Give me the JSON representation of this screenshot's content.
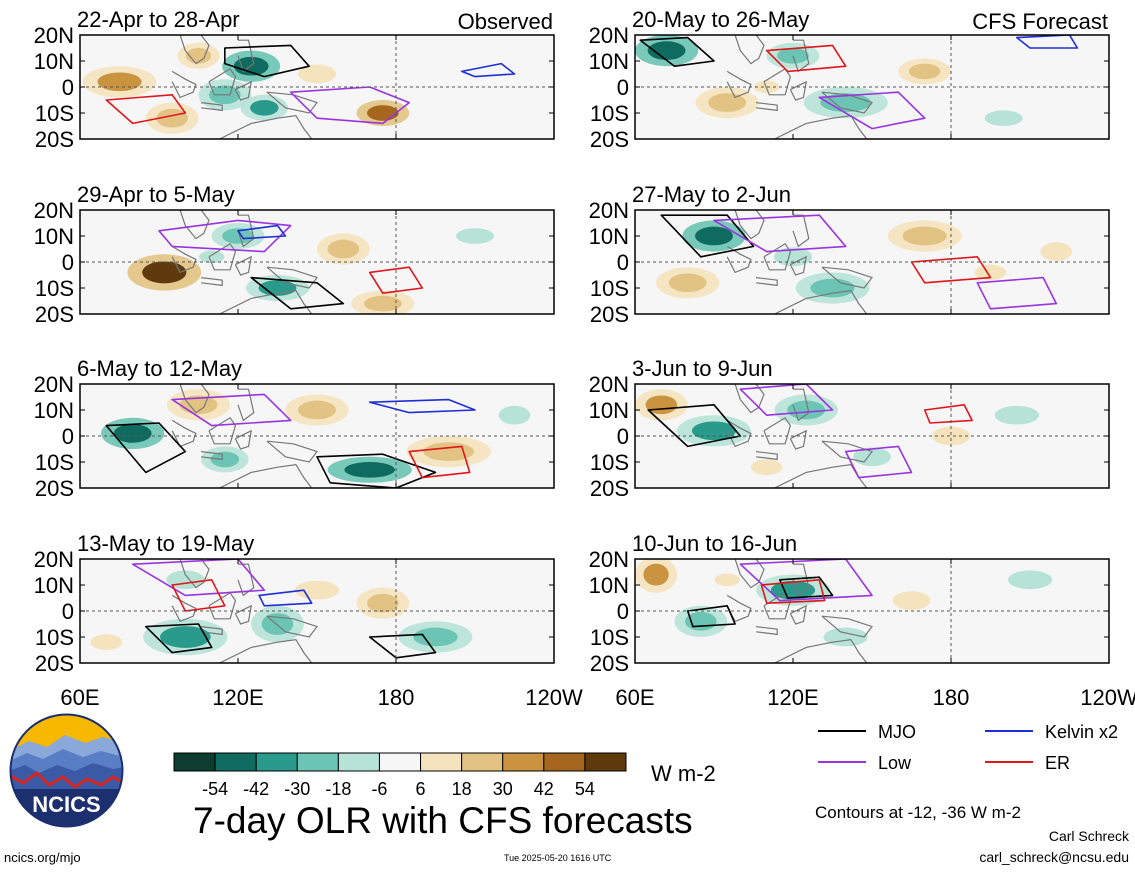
{
  "figure": {
    "title": "7-day OLR with CFS forecasts",
    "units": "W m-2",
    "contour_note": "Contours at -12, -36 W m-2",
    "author": "Carl Schreck",
    "email": "carl_schreck@ncsu.edu",
    "site": "ncics.org/mjo",
    "timestamp": "Tue 2025-05-20 1616 UTC",
    "logo_text": "NCICS",
    "observed_tag": "Observed",
    "forecast_tag": "CFS Forecast"
  },
  "chart_data": {
    "type": "heatmap",
    "variable": "7-day OLR anomaly",
    "lat_ticks": [
      "20N",
      "10N",
      "0",
      "10S",
      "20S"
    ],
    "lon_ticks": [
      "60E",
      "120E",
      "180",
      "120W"
    ],
    "lat_range": [
      -20,
      20
    ],
    "lon_range": [
      60,
      240
    ],
    "colorbar": {
      "ticks": [
        "-54",
        "-42",
        "-30",
        "-18",
        "-6",
        "6",
        "18",
        "30",
        "42",
        "54"
      ],
      "colors": [
        "#0d3d30",
        "#0f6b60",
        "#2a9a8c",
        "#6cc4b4",
        "#b7e3d7",
        "#f6f6f6",
        "#f5e3bd",
        "#e2c383",
        "#c9933f",
        "#a5671d",
        "#5e3a0c"
      ]
    },
    "legend": [
      {
        "name": "MJO",
        "color": "#000000"
      },
      {
        "name": "Kelvin x2",
        "color": "#1f2fd6"
      },
      {
        "name": "Low",
        "color": "#9a34e0"
      },
      {
        "name": "ER",
        "color": "#e0161b"
      }
    ],
    "panels": [
      {
        "title": "22-Apr to 28-Apr",
        "tag": "observed_tag",
        "col": 0,
        "row": 0,
        "blobs": [
          [
            125,
            8,
            11,
            6,
            -50
          ],
          [
            130,
            -8,
            9,
            5,
            -40
          ],
          [
            115,
            -3,
            10,
            6,
            -20
          ],
          [
            75,
            2,
            14,
            6,
            34
          ],
          [
            175,
            -10,
            10,
            5,
            44
          ],
          [
            95,
            -12,
            10,
            6,
            22
          ],
          [
            150,
            5,
            12,
            6,
            12
          ],
          [
            105,
            12,
            8,
            5,
            18
          ]
        ],
        "contours": [
          {
            "type": "MJO",
            "lon": [
              115,
              140,
              147,
              130,
              115
            ],
            "lat": [
              15,
              16,
              8,
              4,
              9
            ]
          },
          {
            "type": "Low",
            "lon": [
              140,
              170,
              185,
              175,
              150,
              140
            ],
            "lat": [
              -2,
              0,
              -6,
              -14,
              -12,
              -2
            ]
          },
          {
            "type": "Kelvin",
            "lon": [
              205,
              220,
              225,
              210,
              205
            ],
            "lat": [
              6,
              9,
              5,
              4,
              6
            ]
          },
          {
            "type": "ER",
            "lon": [
              70,
              95,
              100,
              80,
              70
            ],
            "lat": [
              -5,
              -3,
              -10,
              -14,
              -5
            ]
          }
        ]
      },
      {
        "title": "29-Apr to 5-May",
        "tag": "",
        "col": 0,
        "row": 1,
        "blobs": [
          [
            92,
            -4,
            14,
            7,
            54
          ],
          [
            135,
            -10,
            12,
            5,
            -40
          ],
          [
            120,
            10,
            10,
            5,
            -22
          ],
          [
            175,
            -16,
            12,
            5,
            28
          ],
          [
            160,
            5,
            10,
            6,
            20
          ],
          [
            210,
            10,
            12,
            5,
            -14
          ],
          [
            110,
            2,
            8,
            4,
            -14
          ]
        ],
        "contours": [
          {
            "type": "MJO",
            "lon": [
              125,
              150,
              160,
              140,
              125
            ],
            "lat": [
              -6,
              -8,
              -16,
              -18,
              -6
            ]
          },
          {
            "type": "Low",
            "lon": [
              90,
              120,
              140,
              130,
              95,
              90
            ],
            "lat": [
              12,
              16,
              14,
              4,
              6,
              12
            ]
          },
          {
            "type": "ER",
            "lon": [
              170,
              185,
              190,
              175,
              170
            ],
            "lat": [
              -4,
              -2,
              -10,
              -12,
              -4
            ]
          },
          {
            "type": "Kelvin",
            "lon": [
              120,
              135,
              138,
              122,
              120
            ],
            "lat": [
              12,
              14,
              10,
              9,
              12
            ]
          }
        ]
      },
      {
        "title": "6-May to 12-May",
        "tag": "",
        "col": 0,
        "row": 2,
        "blobs": [
          [
            80,
            1,
            12,
            6,
            -46
          ],
          [
            170,
            -13,
            16,
            5,
            -52
          ],
          [
            115,
            -9,
            9,
            5,
            -28
          ],
          [
            105,
            12,
            12,
            6,
            22
          ],
          [
            150,
            10,
            12,
            6,
            20
          ],
          [
            200,
            -6,
            16,
            6,
            18
          ],
          [
            225,
            8,
            10,
            6,
            -14
          ]
        ],
        "contours": [
          {
            "type": "MJO",
            "lon": [
              150,
              175,
              195,
              180,
              155,
              150
            ],
            "lat": [
              -8,
              -7,
              -14,
              -20,
              -18,
              -8
            ]
          },
          {
            "type": "MJO",
            "lon": [
              70,
              90,
              100,
              85,
              70
            ],
            "lat": [
              4,
              5,
              -6,
              -14,
              4
            ]
          },
          {
            "type": "Kelvin",
            "lon": [
              170,
              200,
              210,
              185,
              170
            ],
            "lat": [
              13,
              14,
              10,
              9,
              13
            ]
          },
          {
            "type": "Low",
            "lon": [
              95,
              130,
              140,
              110,
              95
            ],
            "lat": [
              14,
              16,
              6,
              4,
              14
            ]
          },
          {
            "type": "ER",
            "lon": [
              185,
              205,
              208,
              190,
              185
            ],
            "lat": [
              -6,
              -4,
              -14,
              -16,
              -6
            ]
          }
        ]
      },
      {
        "title": "13-May to 19-May",
        "tag": "",
        "col": 0,
        "row": 3,
        "blobs": [
          [
            100,
            -10,
            16,
            7,
            -34
          ],
          [
            135,
            -5,
            10,
            7,
            -20
          ],
          [
            100,
            12,
            12,
            6,
            -14
          ],
          [
            150,
            8,
            14,
            6,
            16
          ],
          [
            195,
            -10,
            14,
            6,
            -20
          ],
          [
            175,
            3,
            10,
            6,
            18
          ],
          [
            70,
            -12,
            10,
            5,
            12
          ]
        ],
        "contours": [
          {
            "type": "MJO",
            "lon": [
              85,
              105,
              110,
              95,
              85
            ],
            "lat": [
              -6,
              -5,
              -14,
              -16,
              -6
            ]
          },
          {
            "type": "MJO",
            "lon": [
              170,
              190,
              195,
              180,
              170
            ],
            "lat": [
              -10,
              -9,
              -16,
              -18,
              -10
            ]
          },
          {
            "type": "Low",
            "lon": [
              80,
              120,
              130,
              100,
              80
            ],
            "lat": [
              18,
              20,
              8,
              6,
              18
            ]
          },
          {
            "type": "Kelvin",
            "lon": [
              128,
              145,
              148,
              130,
              128
            ],
            "lat": [
              6,
              8,
              3,
              2,
              6
            ]
          },
          {
            "type": "ER",
            "lon": [
              95,
              110,
              115,
              100,
              95
            ],
            "lat": [
              10,
              12,
              2,
              0,
              10
            ]
          }
        ]
      },
      {
        "title": "20-May to 26-May",
        "tag": "forecast_tag",
        "col": 1,
        "row": 0,
        "blobs": [
          [
            72,
            14,
            12,
            6,
            -54
          ],
          [
            120,
            12,
            10,
            5,
            -24
          ],
          [
            140,
            -6,
            16,
            6,
            -22
          ],
          [
            95,
            -6,
            12,
            6,
            22
          ],
          [
            170,
            6,
            10,
            5,
            28
          ],
          [
            200,
            -12,
            12,
            5,
            -14
          ],
          [
            110,
            0,
            8,
            4,
            14
          ]
        ],
        "contours": [
          {
            "type": "MJO",
            "lon": [
              62,
              80,
              90,
              75,
              62
            ],
            "lat": [
              18,
              19,
              10,
              8,
              18
            ]
          },
          {
            "type": "Low",
            "lon": [
              130,
              160,
              170,
              150,
              130
            ],
            "lat": [
              -4,
              -2,
              -12,
              -16,
              -4
            ]
          },
          {
            "type": "Kelvin",
            "lon": [
              205,
              225,
              228,
              210,
              205
            ],
            "lat": [
              19,
              20,
              15,
              15,
              19
            ]
          },
          {
            "type": "ER",
            "lon": [
              110,
              135,
              140,
              118,
              110
            ],
            "lat": [
              14,
              16,
              8,
              6,
              14
            ]
          }
        ]
      },
      {
        "title": "27-May to 2-Jun",
        "tag": "",
        "col": 1,
        "row": 1,
        "blobs": [
          [
            90,
            10,
            12,
            6,
            -54
          ],
          [
            135,
            -10,
            14,
            6,
            -24
          ],
          [
            120,
            2,
            12,
            6,
            -14
          ],
          [
            80,
            -8,
            12,
            6,
            22
          ],
          [
            170,
            10,
            14,
            6,
            18
          ],
          [
            195,
            -4,
            10,
            5,
            16
          ],
          [
            220,
            4,
            10,
            6,
            12
          ]
        ],
        "contours": [
          {
            "type": "MJO",
            "lon": [
              70,
              95,
              105,
              85,
              70
            ],
            "lat": [
              18,
              18,
              6,
              2,
              18
            ]
          },
          {
            "type": "Low",
            "lon": [
              90,
              130,
              140,
              110,
              90
            ],
            "lat": [
              16,
              18,
              6,
              4,
              16
            ]
          },
          {
            "type": "ER",
            "lon": [
              165,
              190,
              195,
              170,
              165
            ],
            "lat": [
              0,
              2,
              -6,
              -8,
              0
            ]
          },
          {
            "type": "Low",
            "lon": [
              190,
              215,
              220,
              195,
              190
            ],
            "lat": [
              -8,
              -6,
              -16,
              -18,
              -8
            ]
          }
        ]
      },
      {
        "title": "3-Jun to 9-Jun",
        "tag": "",
        "col": 1,
        "row": 2,
        "blobs": [
          [
            70,
            12,
            10,
            6,
            30
          ],
          [
            90,
            2,
            14,
            6,
            -34
          ],
          [
            125,
            10,
            12,
            6,
            -20
          ],
          [
            150,
            -8,
            12,
            6,
            -16
          ],
          [
            180,
            0,
            12,
            6,
            12
          ],
          [
            205,
            8,
            14,
            6,
            -12
          ],
          [
            110,
            -12,
            10,
            5,
            14
          ]
        ],
        "contours": [
          {
            "type": "MJO",
            "lon": [
              65,
              90,
              100,
              80,
              65
            ],
            "lat": [
              10,
              12,
              0,
              -4,
              10
            ]
          },
          {
            "type": "Low",
            "lon": [
              100,
              125,
              135,
              110,
              100
            ],
            "lat": [
              18,
              20,
              10,
              8,
              18
            ]
          },
          {
            "type": "Low",
            "lon": [
              140,
              160,
              165,
              145,
              140
            ],
            "lat": [
              -6,
              -4,
              -14,
              -16,
              -6
            ]
          },
          {
            "type": "ER",
            "lon": [
              170,
              185,
              188,
              172,
              170
            ],
            "lat": [
              10,
              12,
              6,
              5,
              10
            ]
          }
        ]
      },
      {
        "title": "10-Jun to 16-Jun",
        "tag": "",
        "col": 1,
        "row": 3,
        "blobs": [
          [
            68,
            14,
            8,
            7,
            30
          ],
          [
            85,
            -4,
            10,
            6,
            -26
          ],
          [
            120,
            8,
            14,
            6,
            -34
          ],
          [
            140,
            -10,
            14,
            6,
            -14
          ],
          [
            165,
            4,
            12,
            6,
            16
          ],
          [
            210,
            12,
            14,
            6,
            -12
          ],
          [
            95,
            12,
            8,
            4,
            16
          ]
        ],
        "contours": [
          {
            "type": "MJO",
            "lon": [
              115,
              130,
              135,
              118,
              115
            ],
            "lat": [
              12,
              13,
              6,
              5,
              12
            ]
          },
          {
            "type": "MJO",
            "lon": [
              80,
              95,
              98,
              82,
              80
            ],
            "lat": [
              0,
              2,
              -5,
              -6,
              0
            ]
          },
          {
            "type": "Low",
            "lon": [
              100,
              140,
              150,
              115,
              100
            ],
            "lat": [
              18,
              20,
              6,
              4,
              18
            ]
          },
          {
            "type": "ER",
            "lon": [
              108,
              130,
              132,
              110,
              108
            ],
            "lat": [
              10,
              12,
              4,
              3,
              10
            ]
          }
        ]
      }
    ]
  }
}
